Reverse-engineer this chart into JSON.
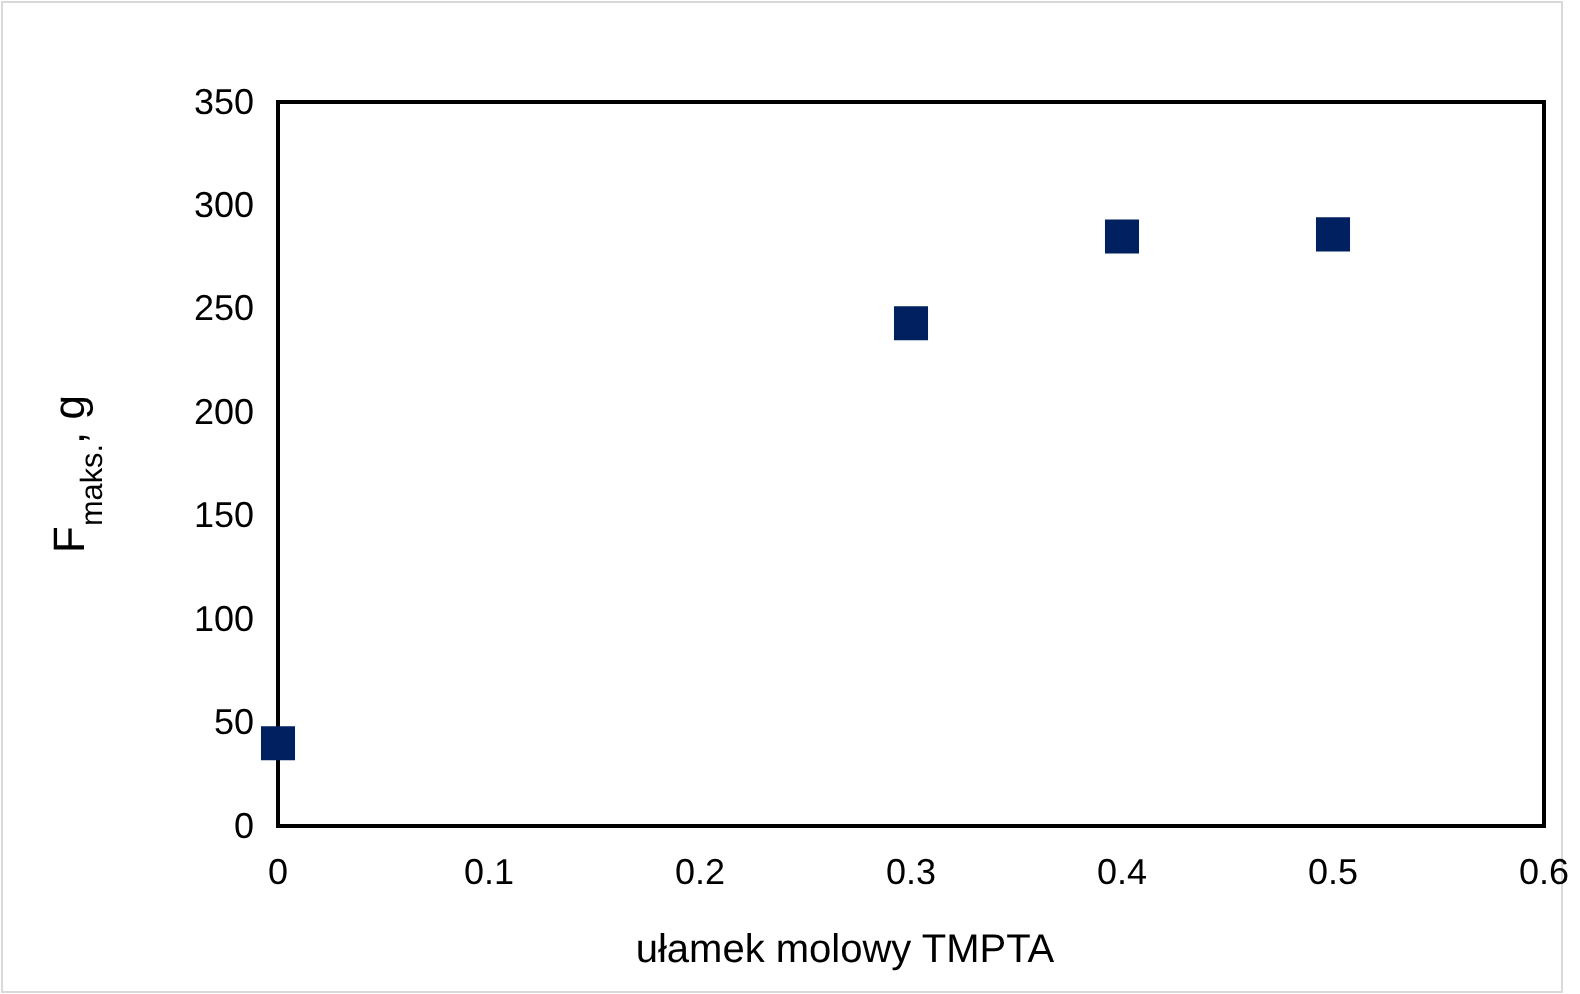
{
  "chart_data": {
    "type": "scatter",
    "xlabel": "ułamek molowy TMPTA",
    "ylabel": "F$_{maks.}$, g",
    "x": [
      0,
      0.3,
      0.4,
      0.5
    ],
    "series": [
      {
        "color": "#002060",
        "values": [
          40,
          243,
          285,
          286
        ]
      }
    ],
    "marker": "square",
    "grid": false,
    "xlim": [
      0,
      0.6
    ],
    "xticks": [
      0,
      0.1,
      0.2,
      0.3,
      0.4,
      0.5,
      0.6
    ],
    "ylim": [
      0,
      350
    ],
    "yticks": [
      0,
      50,
      100,
      150,
      200,
      250,
      300,
      350
    ]
  }
}
